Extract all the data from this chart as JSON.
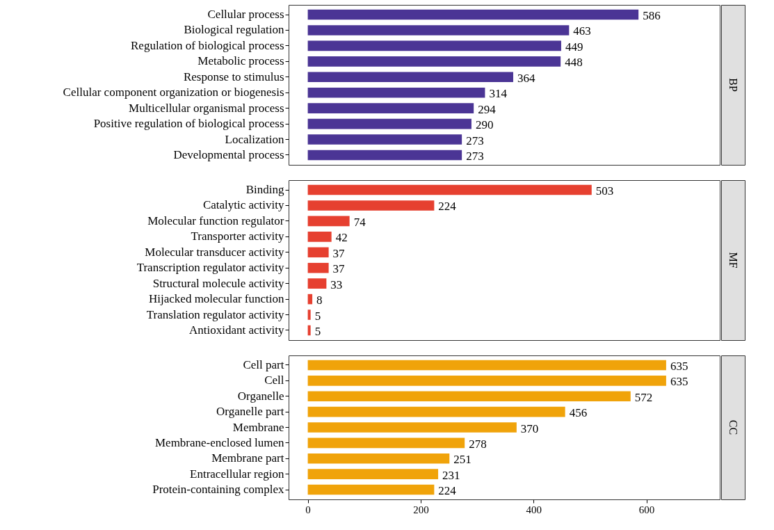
{
  "chart_data": [
    {
      "type": "bar",
      "orientation": "horizontal",
      "y2label": "BP",
      "categories": [
        "Cellular process",
        "Biological regulation",
        "Regulation of biological process",
        "Metabolic process",
        "Response to stimulus",
        "Cellular component organization or biogenesis",
        "Multicellular organismal process",
        "Positive regulation of biological process",
        "Localization",
        "Developmental process"
      ],
      "values": [
        586,
        463,
        449,
        448,
        364,
        314,
        294,
        290,
        273,
        273
      ],
      "color": "#4b3595",
      "xlim": [
        -34,
        730
      ],
      "data_labels": true,
      "tick_labels": "y",
      "grid": false
    },
    {
      "type": "bar",
      "orientation": "horizontal",
      "y2label": "MF",
      "categories": [
        "Binding",
        "Catalytic activity",
        "Molecular function regulator",
        "Transporter activity",
        "Molecular transducer activity",
        "Transcription regulator activity",
        "Structural molecule activity",
        "Hijacked molecular function",
        "Translation regulator activity",
        "Antioxidant activity"
      ],
      "values": [
        503,
        224,
        74,
        42,
        37,
        37,
        33,
        8,
        5,
        5
      ],
      "color": "#e64030",
      "xlim": [
        -34,
        730
      ],
      "data_labels": true,
      "tick_labels": "y",
      "grid": false
    },
    {
      "type": "bar",
      "orientation": "horizontal",
      "y2label": "CC",
      "categories": [
        "Cell part",
        "Cell",
        "Organelle",
        "Organelle part",
        "Membrane",
        "Membrane-enclosed lumen",
        "Membrane part",
        "Entracellular region",
        "Protein-containing complex"
      ],
      "values": [
        635,
        635,
        572,
        456,
        370,
        278,
        251,
        231,
        224
      ],
      "color": "#f0a30a",
      "xlim": [
        -34,
        730
      ],
      "xticks": [
        0,
        200,
        400,
        600
      ],
      "data_labels": true,
      "grid": false
    }
  ]
}
